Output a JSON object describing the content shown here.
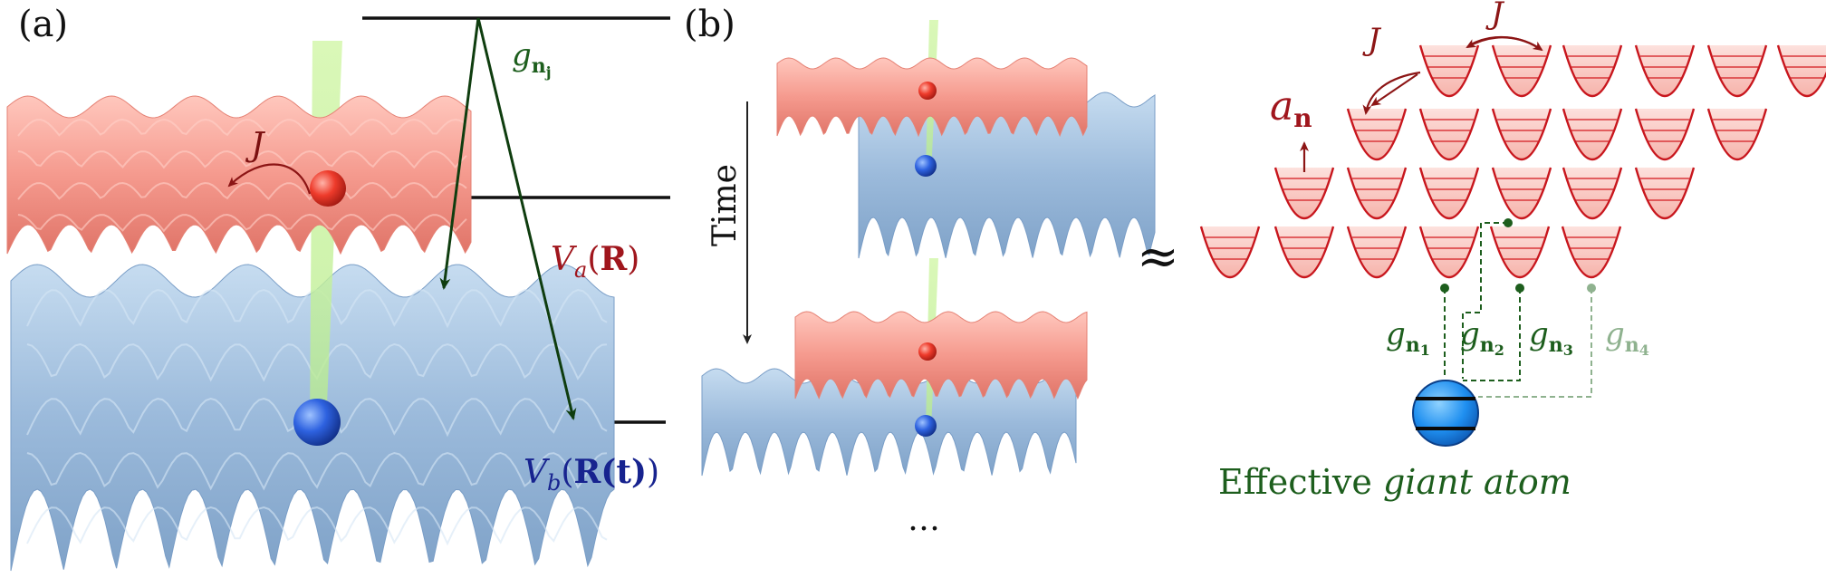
{
  "panel_a": {
    "label": "(a)",
    "coupling_label": "g",
    "coupling_sub": "n",
    "coupling_sub2": "j",
    "hop_label": "J",
    "potential_a": {
      "sym": "V",
      "sub": "a",
      "open": "(",
      "arg": "R",
      "close": ")"
    },
    "potential_b": {
      "sym": "V",
      "sub": "b",
      "open": "(",
      "arg": "R",
      "argt": "(t)",
      "close": ")"
    }
  },
  "panel_b": {
    "label": "(b)",
    "time_label": "Time",
    "ellipsis": "…",
    "approx": "≈",
    "hop_label_1": "J",
    "hop_label_2": "J",
    "mode_label": {
      "sym": "a",
      "sub": "n"
    },
    "couplings": [
      {
        "g": "g",
        "n": "n",
        "idx": "1",
        "color": "#1d5e1d"
      },
      {
        "g": "g",
        "n": "n",
        "idx": "2",
        "color": "#1d5e1d"
      },
      {
        "g": "g",
        "n": "n",
        "idx": "3",
        "color": "#1d5e1d"
      },
      {
        "g": "g",
        "n": "n",
        "idx": "4",
        "color": "#8fb28f"
      }
    ],
    "caption_plain": "Effective ",
    "caption_ital": "giant atom"
  },
  "colors": {
    "lattice_red": "#f4958a",
    "lattice_blue": "#9dbcdc",
    "well_red": "#c8161d",
    "dark_green": "#1d5e1d",
    "light_green": "#8fb28f",
    "beam_green": "#cdf4a5",
    "atom_blue": "#2a6fe0",
    "label_red": "#a0161d",
    "label_blue": "#17238f"
  }
}
